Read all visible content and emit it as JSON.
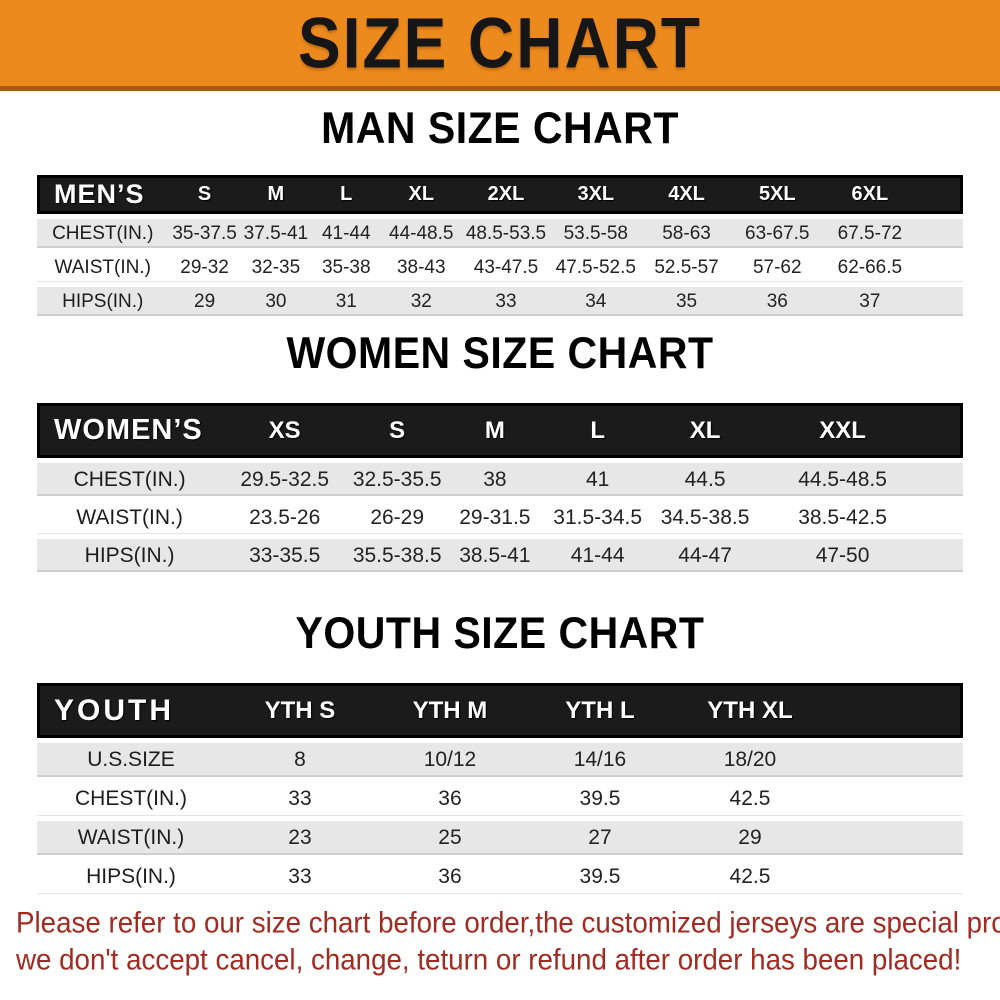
{
  "banner": {
    "title": "SIZE CHART",
    "bg_color": "#ED8A1E",
    "border_color": "#A85C10"
  },
  "sections": [
    {
      "id": "men",
      "title": "MAN SIZE CHART",
      "corner": "MEN’S",
      "columns": [
        "S",
        "M",
        "L",
        "XL",
        "2XL",
        "3XL",
        "4XL",
        "5XL",
        "6XL"
      ],
      "rows": [
        {
          "label": "CHEST(IN.)",
          "values": [
            "35-37.5",
            "37.5-41",
            "41-44",
            "44-48.5",
            "48.5-53.5",
            "53.5-58",
            "58-63",
            "63-67.5",
            "67.5-72"
          ]
        },
        {
          "label": "WAIST(IN.)",
          "values": [
            "29-32",
            "32-35",
            "35-38",
            "38-43",
            "43-47.5",
            "47.5-52.5",
            "52.5-57",
            "57-62",
            "62-66.5"
          ]
        },
        {
          "label": "HIPS(IN.)",
          "values": [
            "29",
            "30",
            "31",
            "32",
            "33",
            "34",
            "35",
            "36",
            "37"
          ]
        }
      ]
    },
    {
      "id": "women",
      "title": "WOMEN SIZE CHART",
      "corner": "WOMEN’S",
      "columns": [
        "XS",
        "S",
        "M",
        "L",
        "XL",
        "XXL"
      ],
      "rows": [
        {
          "label": "CHEST(IN.)",
          "values": [
            "29.5-32.5",
            "32.5-35.5",
            "38",
            "41",
            "44.5",
            "44.5-48.5"
          ]
        },
        {
          "label": "WAIST(IN.)",
          "values": [
            "23.5-26",
            "26-29",
            "29-31.5",
            "31.5-34.5",
            "34.5-38.5",
            "38.5-42.5"
          ]
        },
        {
          "label": "HIPS(IN.)",
          "values": [
            "33-35.5",
            "35.5-38.5",
            "38.5-41",
            "41-44",
            "44-47",
            "47-50"
          ]
        }
      ]
    },
    {
      "id": "youth",
      "title": "YOUTH SIZE CHART",
      "corner": "YOUTH",
      "columns": [
        "YTH S",
        "YTH M",
        "YTH L",
        "YTH XL"
      ],
      "rows": [
        {
          "label": "U.S.SIZE",
          "values": [
            "8",
            "10/12",
            "14/16",
            "18/20"
          ]
        },
        {
          "label": "CHEST(IN.)",
          "values": [
            "33",
            "36",
            "39.5",
            "42.5"
          ]
        },
        {
          "label": "WAIST(IN.)",
          "values": [
            "23",
            "25",
            "27",
            "29"
          ]
        },
        {
          "label": "HIPS(IN.)",
          "values": [
            "33",
            "36",
            "39.5",
            "42.5"
          ]
        }
      ]
    }
  ],
  "footer": {
    "line1": "Please refer to our size chart before order,the customized jerseys are special products,",
    "line2": "we don't accept cancel, change, teturn or refund after order has been placed!",
    "color": "#A32A20"
  }
}
